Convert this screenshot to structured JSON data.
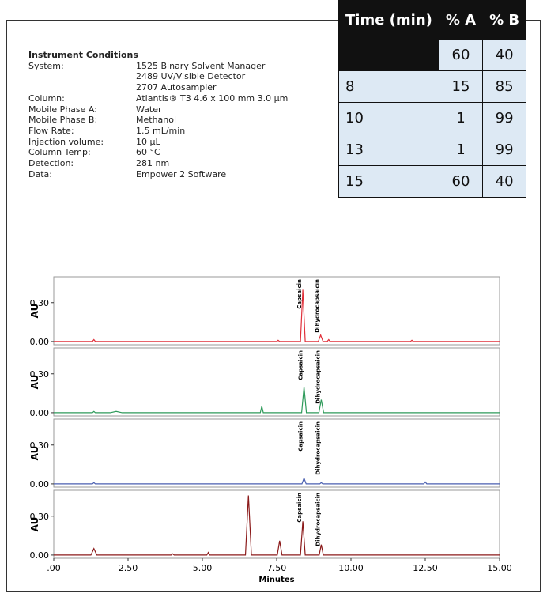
{
  "conditions": {
    "title": "Instrument Conditions",
    "items": [
      {
        "key": "System:",
        "values": [
          "1525 Binary Solvent Manager",
          "2489 UV/Visible Detector",
          "2707 Autosampler"
        ]
      },
      {
        "key": "Column:",
        "values": [
          "Atlantis® T3 4.6 x 100 mm 3.0 µm"
        ]
      },
      {
        "key": "Mobile Phase A:",
        "values": [
          "Water"
        ]
      },
      {
        "key": "Mobile Phase B:",
        "values": [
          "Methanol"
        ]
      },
      {
        "key": "Flow Rate:",
        "values": [
          "1.5 mL/min"
        ]
      },
      {
        "key": "Injection volume:",
        "values": [
          "10 µL"
        ]
      },
      {
        "key": "Column Temp:",
        "values": [
          "60 °C"
        ]
      },
      {
        "key": "Detection:",
        "values": [
          "281 nm"
        ]
      },
      {
        "key": "Data:",
        "values": [
          "Empower 2 Software"
        ]
      }
    ]
  },
  "table": {
    "header": [
      "Time (min)",
      "% A",
      "% B"
    ],
    "rows": [
      [
        null,
        60,
        40
      ],
      [
        8,
        15,
        85
      ],
      [
        10,
        1,
        99
      ],
      [
        13,
        1,
        99
      ],
      [
        15,
        60,
        40
      ]
    ]
  },
  "chart_data": [
    {
      "type": "line",
      "ylabel": "AU",
      "xlim": [
        0,
        15
      ],
      "ylim": [
        -0.025,
        0.5
      ],
      "yticks": [
        {
          "value": 0,
          "label": "0.00"
        },
        {
          "value": 0.3,
          "label": "0.30"
        }
      ],
      "series": [
        {
          "color": "#e0303a",
          "x": [
            0,
            1.3,
            1.35,
            1.4,
            5,
            7.5,
            7.55,
            7.6,
            8.3,
            8.38,
            8.46,
            8.9,
            8.98,
            9.06,
            9.2,
            9.25,
            9.3,
            12,
            12.05,
            12.1,
            15
          ],
          "values": [
            0,
            0,
            0.015,
            0,
            0,
            0,
            0.01,
            0,
            0,
            0.4,
            0,
            0,
            0.05,
            0,
            0,
            0.015,
            0,
            0,
            0.01,
            0,
            0
          ]
        }
      ],
      "annotations": [
        {
          "text": "Capsaicin",
          "x": 8.38
        },
        {
          "text": "Dihydrocapsaicin",
          "x": 8.98
        }
      ]
    },
    {
      "type": "line",
      "ylabel": "AU",
      "xlim": [
        0,
        15
      ],
      "ylim": [
        -0.025,
        0.5
      ],
      "yticks": [
        {
          "value": 0,
          "label": "0.00"
        },
        {
          "value": 0.3,
          "label": "0.30"
        }
      ],
      "series": [
        {
          "color": "#2e9a5a",
          "x": [
            0,
            1.3,
            1.35,
            1.4,
            1.9,
            2.1,
            2.3,
            6.95,
            7.0,
            7.05,
            8.34,
            8.42,
            8.5,
            8.92,
            9.0,
            9.08,
            15
          ],
          "values": [
            0,
            0,
            0.01,
            0,
            0,
            0.01,
            0,
            0,
            0.05,
            0,
            0,
            0.2,
            0,
            0,
            0.1,
            0,
            0
          ]
        }
      ],
      "annotations": [
        {
          "text": "Capsaicin",
          "x": 8.42
        },
        {
          "text": "Dihydrocapsaicin",
          "x": 9.0
        }
      ]
    },
    {
      "type": "line",
      "ylabel": "AU",
      "xlim": [
        0,
        15
      ],
      "ylim": [
        -0.025,
        0.5
      ],
      "yticks": [
        {
          "value": 0,
          "label": "0.00"
        },
        {
          "value": 0.3,
          "label": "0.30"
        }
      ],
      "series": [
        {
          "color": "#4a5fb0",
          "x": [
            0,
            1.3,
            1.35,
            1.4,
            8.35,
            8.42,
            8.49,
            8.95,
            9.0,
            9.05,
            12.45,
            12.5,
            12.55,
            15
          ],
          "values": [
            0,
            0,
            0.01,
            0,
            0,
            0.045,
            0,
            0,
            0.01,
            0,
            0,
            0.015,
            0,
            0
          ]
        }
      ],
      "annotations": [
        {
          "text": "Capsaicin",
          "x": 8.42
        },
        {
          "text": "Dihydrocapsaicin",
          "x": 9.0
        }
      ]
    },
    {
      "type": "line",
      "ylabel": "AU",
      "xlim": [
        0,
        15
      ],
      "ylim": [
        -0.025,
        0.5
      ],
      "xlabel": "Minutes",
      "xticks": [
        {
          "value": 0,
          "label": ".00"
        },
        {
          "value": 2.5,
          "label": "2.50"
        },
        {
          "value": 5,
          "label": "5.00"
        },
        {
          "value": 7.5,
          "label": "7.50"
        },
        {
          "value": 10,
          "label": "10.00"
        },
        {
          "value": 12.5,
          "label": "12.50"
        },
        {
          "value": 15,
          "label": "15.00"
        }
      ],
      "yticks": [
        {
          "value": 0,
          "label": "0.00"
        },
        {
          "value": 0.3,
          "label": "0.30"
        }
      ],
      "series": [
        {
          "color": "#8b1a1a",
          "x": [
            0,
            1.25,
            1.35,
            1.45,
            3.95,
            4.0,
            4.05,
            5.15,
            5.2,
            5.25,
            6.45,
            6.55,
            6.65,
            7.52,
            7.6,
            7.68,
            8.3,
            8.38,
            8.46,
            8.93,
            9.0,
            9.07,
            15
          ],
          "values": [
            0,
            0,
            0.05,
            0,
            0,
            0.01,
            0,
            0,
            0.02,
            0,
            0,
            0.46,
            0,
            0,
            0.11,
            0,
            0,
            0.26,
            0,
            0,
            0.08,
            0,
            0
          ]
        }
      ],
      "annotations": [
        {
          "text": "Capsaicin",
          "x": 8.38
        },
        {
          "text": "Dihydrocapsaicin",
          "x": 9.0
        }
      ]
    }
  ]
}
